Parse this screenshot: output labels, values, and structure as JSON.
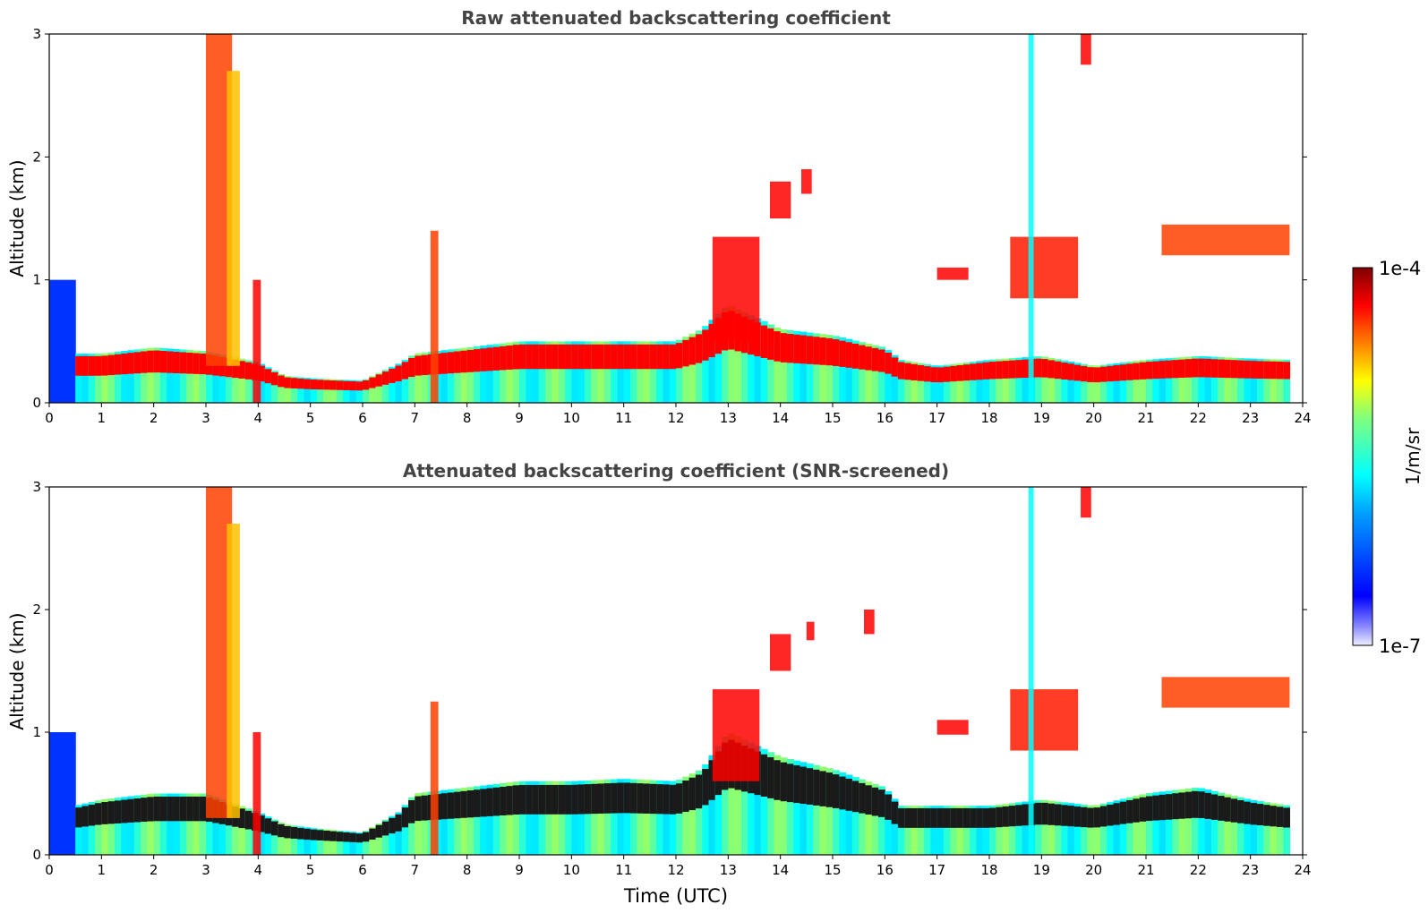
{
  "chart_data": [
    {
      "type": "heatmap",
      "title": "Raw attenuated backscattering coefficient",
      "xlabel": "",
      "ylabel": "Altitude (km)",
      "xlim": [
        0,
        24
      ],
      "ylim": [
        0,
        3
      ],
      "x_ticks": [
        "0",
        "1",
        "2",
        "3",
        "4",
        "5",
        "6",
        "7",
        "8",
        "9",
        "10",
        "11",
        "12",
        "13",
        "14",
        "15",
        "16",
        "17",
        "18",
        "19",
        "20",
        "21",
        "22",
        "23",
        "24"
      ],
      "y_ticks": [
        "0",
        "1",
        "2",
        "3"
      ],
      "boundary_layer_top_km": [
        {
          "x": 0.5,
          "y": 0.4
        },
        {
          "x": 1,
          "y": 0.4
        },
        {
          "x": 2,
          "y": 0.45
        },
        {
          "x": 3,
          "y": 0.42
        },
        {
          "x": 4,
          "y": 0.33
        },
        {
          "x": 4.5,
          "y": 0.22
        },
        {
          "x": 5,
          "y": 0.2
        },
        {
          "x": 6,
          "y": 0.18
        },
        {
          "x": 6.7,
          "y": 0.32
        },
        {
          "x": 7,
          "y": 0.4
        },
        {
          "x": 8,
          "y": 0.45
        },
        {
          "x": 9,
          "y": 0.5
        },
        {
          "x": 10,
          "y": 0.5
        },
        {
          "x": 11,
          "y": 0.5
        },
        {
          "x": 12,
          "y": 0.5
        },
        {
          "x": 12.5,
          "y": 0.6
        },
        {
          "x": 13,
          "y": 0.8
        },
        {
          "x": 14,
          "y": 0.6
        },
        {
          "x": 15,
          "y": 0.55
        },
        {
          "x": 16,
          "y": 0.45
        },
        {
          "x": 16.3,
          "y": 0.35
        },
        {
          "x": 17,
          "y": 0.3
        },
        {
          "x": 18,
          "y": 0.35
        },
        {
          "x": 19,
          "y": 0.38
        },
        {
          "x": 20,
          "y": 0.3
        },
        {
          "x": 21,
          "y": 0.35
        },
        {
          "x": 22,
          "y": 0.38
        },
        {
          "x": 23,
          "y": 0.36
        },
        {
          "x": 23.75,
          "y": 0.35
        }
      ],
      "cloud_features": [
        {
          "x0": 3.0,
          "x1": 3.5,
          "y0": 0.3,
          "y1": 3.0,
          "level": 0.85
        },
        {
          "x0": 3.4,
          "x1": 3.65,
          "y0": 0.3,
          "y1": 2.7,
          "level": 0.75
        },
        {
          "x0": 3.9,
          "x1": 4.05,
          "y0": 0.0,
          "y1": 1.0,
          "level": 0.9
        },
        {
          "x0": 7.3,
          "x1": 7.45,
          "y0": 0.0,
          "y1": 1.4,
          "level": 0.85
        },
        {
          "x0": 12.7,
          "x1": 13.6,
          "y0": 0.5,
          "y1": 1.35,
          "level": 0.9
        },
        {
          "x0": 13.8,
          "x1": 14.2,
          "y0": 1.5,
          "y1": 1.8,
          "level": 0.9
        },
        {
          "x0": 14.4,
          "x1": 14.6,
          "y0": 1.7,
          "y1": 1.9,
          "level": 0.9
        },
        {
          "x0": 17.0,
          "x1": 17.6,
          "y0": 1.0,
          "y1": 1.1,
          "level": 0.9
        },
        {
          "x0": 18.4,
          "x1": 19.7,
          "y0": 0.85,
          "y1": 1.35,
          "level": 0.88
        },
        {
          "x0": 18.75,
          "x1": 18.85,
          "y0": 0.0,
          "y1": 3.0,
          "level": 0.45
        },
        {
          "x0": 19.75,
          "x1": 19.95,
          "y0": 2.75,
          "y1": 3.0,
          "level": 0.9
        },
        {
          "x0": 21.3,
          "x1": 23.75,
          "y0": 1.2,
          "y1": 1.45,
          "level": 0.85
        }
      ]
    },
    {
      "type": "heatmap",
      "title": "Attenuated backscattering coefficient (SNR-screened)",
      "xlabel": "Time (UTC)",
      "ylabel": "Altitude (km)",
      "xlim": [
        0,
        24
      ],
      "ylim": [
        0,
        3
      ],
      "x_ticks": [
        "0",
        "1",
        "2",
        "3",
        "4",
        "5",
        "6",
        "7",
        "8",
        "9",
        "10",
        "11",
        "12",
        "13",
        "14",
        "15",
        "16",
        "17",
        "18",
        "19",
        "20",
        "21",
        "22",
        "23",
        "24"
      ],
      "y_ticks": [
        "0",
        "1",
        "2",
        "3"
      ],
      "boundary_layer_top_km": [
        {
          "x": 0.5,
          "y": 0.4
        },
        {
          "x": 1,
          "y": 0.45
        },
        {
          "x": 2,
          "y": 0.5
        },
        {
          "x": 3,
          "y": 0.5
        },
        {
          "x": 4,
          "y": 0.35
        },
        {
          "x": 4.5,
          "y": 0.25
        },
        {
          "x": 5,
          "y": 0.22
        },
        {
          "x": 6,
          "y": 0.18
        },
        {
          "x": 6.7,
          "y": 0.35
        },
        {
          "x": 7,
          "y": 0.5
        },
        {
          "x": 8,
          "y": 0.55
        },
        {
          "x": 9,
          "y": 0.6
        },
        {
          "x": 10,
          "y": 0.6
        },
        {
          "x": 11,
          "y": 0.62
        },
        {
          "x": 12,
          "y": 0.6
        },
        {
          "x": 12.5,
          "y": 0.7
        },
        {
          "x": 13,
          "y": 1.0
        },
        {
          "x": 14,
          "y": 0.8
        },
        {
          "x": 15,
          "y": 0.7
        },
        {
          "x": 16,
          "y": 0.55
        },
        {
          "x": 16.3,
          "y": 0.4
        },
        {
          "x": 17,
          "y": 0.4
        },
        {
          "x": 18,
          "y": 0.4
        },
        {
          "x": 19,
          "y": 0.45
        },
        {
          "x": 20,
          "y": 0.4
        },
        {
          "x": 21,
          "y": 0.5
        },
        {
          "x": 22,
          "y": 0.55
        },
        {
          "x": 23,
          "y": 0.45
        },
        {
          "x": 23.75,
          "y": 0.4
        }
      ],
      "cloud_features": [
        {
          "x0": 3.0,
          "x1": 3.5,
          "y0": 0.3,
          "y1": 3.0,
          "level": 0.85
        },
        {
          "x0": 3.4,
          "x1": 3.65,
          "y0": 0.3,
          "y1": 2.7,
          "level": 0.75
        },
        {
          "x0": 3.9,
          "x1": 4.05,
          "y0": 0.0,
          "y1": 1.0,
          "level": 0.9
        },
        {
          "x0": 7.3,
          "x1": 7.45,
          "y0": 0.0,
          "y1": 1.25,
          "level": 0.85
        },
        {
          "x0": 12.7,
          "x1": 13.6,
          "y0": 0.6,
          "y1": 1.35,
          "level": 0.9
        },
        {
          "x0": 13.8,
          "x1": 14.2,
          "y0": 1.5,
          "y1": 1.8,
          "level": 0.9
        },
        {
          "x0": 14.5,
          "x1": 14.65,
          "y0": 1.75,
          "y1": 1.9,
          "level": 0.9
        },
        {
          "x0": 15.6,
          "x1": 15.8,
          "y0": 1.8,
          "y1": 2.0,
          "level": 0.9
        },
        {
          "x0": 17.0,
          "x1": 17.6,
          "y0": 0.98,
          "y1": 1.1,
          "level": 0.9
        },
        {
          "x0": 18.4,
          "x1": 19.7,
          "y0": 0.85,
          "y1": 1.35,
          "level": 0.88
        },
        {
          "x0": 18.75,
          "x1": 18.85,
          "y0": 0.0,
          "y1": 3.0,
          "level": 0.45
        },
        {
          "x0": 19.75,
          "x1": 19.95,
          "y0": 2.75,
          "y1": 3.0,
          "level": 0.9
        },
        {
          "x0": 21.3,
          "x1": 23.75,
          "y0": 1.2,
          "y1": 1.45,
          "level": 0.85
        }
      ]
    }
  ],
  "colorbar": {
    "label": "1/m/sr",
    "max_label": "1e-4",
    "min_label": "1e-7",
    "colormap": "jet"
  }
}
